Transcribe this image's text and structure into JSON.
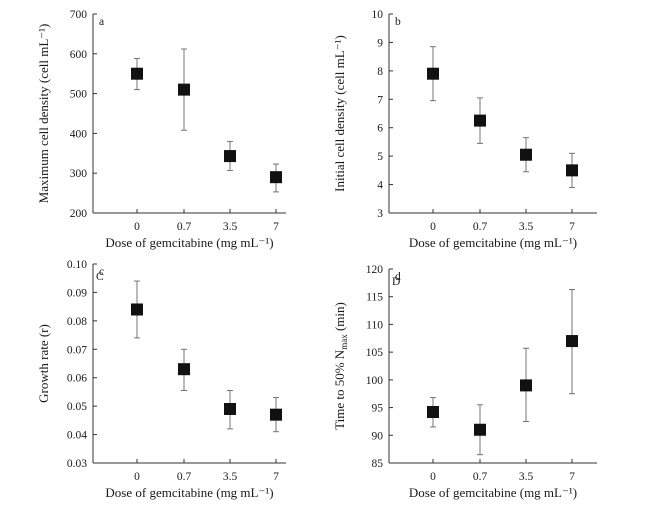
{
  "chart_data": [
    {
      "type": "scatter",
      "panel": "a",
      "title": "",
      "xlabel": "Dose of gemcitabine (mg mL⁻¹)",
      "ylabel": "Maximum cell density (cell mL⁻¹)",
      "categories": [
        "0",
        "0.7",
        "3.5",
        "7"
      ],
      "values": [
        550,
        510,
        343,
        290
      ],
      "err_low": [
        510,
        408,
        307,
        253
      ],
      "err_high": [
        588,
        612,
        380,
        323
      ],
      "ylim": [
        200,
        700
      ],
      "yticks": [
        "200",
        "300",
        "400",
        "500",
        "600",
        "700"
      ]
    },
    {
      "type": "scatter",
      "panel": "b",
      "title": "",
      "xlabel": "Dose of gemcitabine (mg mL⁻¹)",
      "ylabel": "Initial cell density (cell mL⁻¹)",
      "categories": [
        "0",
        "0.7",
        "3.5",
        "7"
      ],
      "values": [
        7.9,
        6.25,
        5.05,
        4.5
      ],
      "err_low": [
        6.95,
        5.45,
        4.45,
        3.9
      ],
      "err_high": [
        8.85,
        7.05,
        5.65,
        5.1
      ],
      "ylim": [
        3,
        10
      ],
      "yticks": [
        "3",
        "4",
        "5",
        "6",
        "7",
        "8",
        "9",
        "10"
      ]
    },
    {
      "type": "scatter",
      "panel": "c",
      "panel_alt": "C",
      "title": "",
      "xlabel": "Dose of gemcitabine (mg mL⁻¹)",
      "ylabel": "Growth rate (r)",
      "categories": [
        "0",
        "0.7",
        "3.5",
        "7"
      ],
      "values": [
        0.084,
        0.063,
        0.049,
        0.047
      ],
      "err_low": [
        0.074,
        0.0555,
        0.042,
        0.041
      ],
      "err_high": [
        0.094,
        0.07,
        0.0555,
        0.053
      ],
      "ylim": [
        0.03,
        0.1
      ],
      "yticks": [
        "0.03",
        "0.04",
        "0.05",
        "0.06",
        "0.07",
        "0.08",
        "0.09",
        "0.10"
      ]
    },
    {
      "type": "scatter",
      "panel": "d",
      "panel_alt": "D",
      "title": "",
      "xlabel": "Dose of gemcitabine (mg mL⁻¹)",
      "ylabel": "Time to 50% N",
      "ylabel_sub": "max",
      "ylabel_unit": " (min)",
      "categories": [
        "0",
        "0.7",
        "3.5",
        "7"
      ],
      "values": [
        94.2,
        91.0,
        99.0,
        107.0
      ],
      "err_low": [
        91.5,
        86.5,
        92.5,
        97.5
      ],
      "err_high": [
        96.8,
        95.5,
        105.7,
        116.3
      ],
      "ylim": [
        85,
        120
      ],
      "yticks": [
        "85",
        "90",
        "95",
        "100",
        "105",
        "110",
        "115",
        "120"
      ]
    }
  ]
}
